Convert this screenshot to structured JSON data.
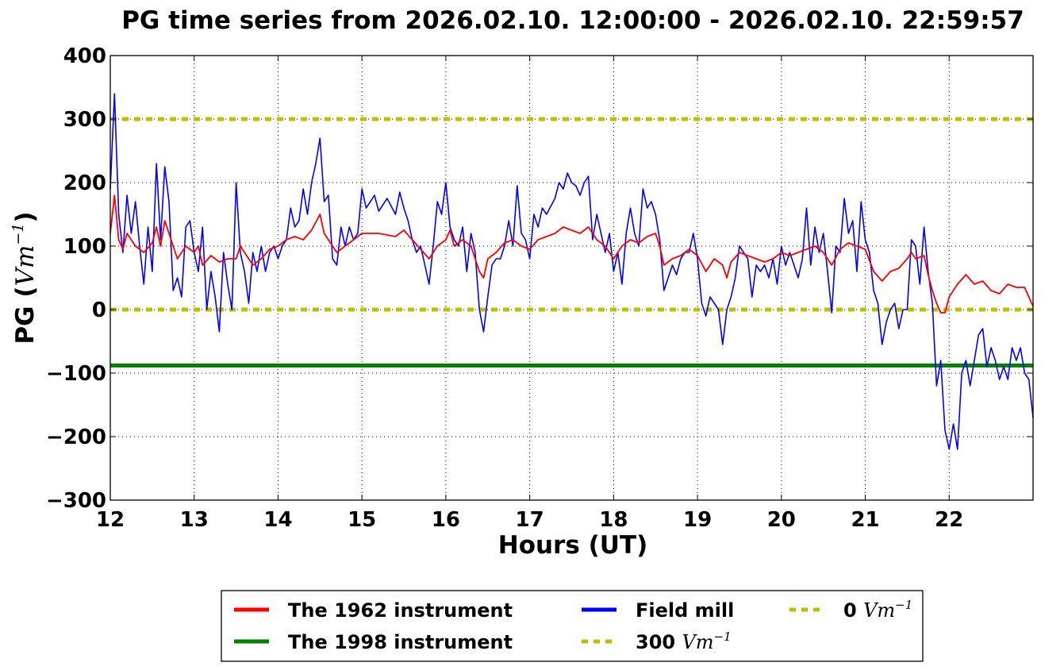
{
  "chart_data": {
    "type": "line",
    "title": "PG time series from 2026.02.10. 12:00:00 - 2026.02.10. 22:59:57",
    "xlabel": "Hours (UT)",
    "ylabel_prefix": "PG (",
    "ylabel_math": "Vm",
    "ylabel_exp": "−1",
    "ylabel_suffix": ")",
    "xlim": [
      12,
      23
    ],
    "ylim": [
      -300,
      400
    ],
    "xticks": [
      12,
      13,
      14,
      15,
      16,
      17,
      18,
      19,
      20,
      21,
      22
    ],
    "yticks": [
      400,
      300,
      200,
      100,
      0,
      -100,
      -200,
      -300
    ],
    "xtick_labels": [
      "12",
      "13",
      "14",
      "15",
      "16",
      "17",
      "18",
      "19",
      "20",
      "21",
      "22"
    ],
    "ytick_labels": [
      "400",
      "300",
      "200",
      "100",
      "0",
      "−100",
      "−200",
      "−300"
    ],
    "grid": true,
    "legend_placement": "bottom-center-outside",
    "series": [
      {
        "name": "The 1962 instrument",
        "color": "#ff0000",
        "x": [
          12.0,
          12.05,
          12.1,
          12.15,
          12.2,
          12.3,
          12.4,
          12.5,
          12.55,
          12.6,
          12.65,
          12.7,
          12.8,
          12.9,
          13.0,
          13.05,
          13.1,
          13.2,
          13.3,
          13.4,
          13.5,
          13.55,
          13.6,
          13.7,
          13.8,
          13.9,
          14.0,
          14.1,
          14.2,
          14.3,
          14.4,
          14.5,
          14.55,
          14.6,
          14.7,
          14.8,
          14.9,
          15.0,
          15.2,
          15.4,
          15.5,
          15.6,
          15.7,
          15.8,
          15.9,
          16.0,
          16.05,
          16.1,
          16.2,
          16.3,
          16.4,
          16.45,
          16.5,
          16.6,
          16.7,
          16.8,
          16.9,
          17.0,
          17.1,
          17.2,
          17.3,
          17.4,
          17.5,
          17.6,
          17.7,
          17.8,
          17.9,
          18.0,
          18.1,
          18.2,
          18.3,
          18.4,
          18.5,
          18.55,
          18.6,
          18.7,
          18.8,
          18.9,
          19.0,
          19.1,
          19.2,
          19.3,
          19.35,
          19.4,
          19.5,
          19.6,
          19.7,
          19.8,
          19.9,
          20.0,
          20.1,
          20.2,
          20.3,
          20.4,
          20.5,
          20.6,
          20.7,
          20.8,
          20.9,
          21.0,
          21.1,
          21.2,
          21.3,
          21.4,
          21.5,
          21.55,
          21.6,
          21.7,
          21.75,
          21.8,
          21.85,
          21.9,
          21.95,
          22.0,
          22.1,
          22.2,
          22.3,
          22.4,
          22.5,
          22.6,
          22.7,
          22.8,
          22.9,
          23.0
        ],
        "y": [
          120,
          180,
          110,
          95,
          120,
          100,
          90,
          105,
          130,
          100,
          140,
          120,
          80,
          100,
          90,
          100,
          70,
          85,
          75,
          80,
          80,
          100,
          90,
          70,
          80,
          95,
          100,
          110,
          115,
          110,
          125,
          150,
          120,
          110,
          90,
          100,
          110,
          120,
          120,
          115,
          125,
          110,
          95,
          80,
          100,
          110,
          125,
          100,
          110,
          100,
          60,
          50,
          80,
          90,
          105,
          110,
          100,
          95,
          110,
          115,
          120,
          130,
          125,
          120,
          130,
          110,
          100,
          80,
          100,
          110,
          105,
          115,
          120,
          100,
          70,
          80,
          85,
          95,
          85,
          60,
          80,
          70,
          50,
          75,
          90,
          85,
          80,
          75,
          80,
          90,
          85,
          90,
          95,
          100,
          90,
          70,
          95,
          105,
          100,
          95,
          60,
          45,
          60,
          65,
          80,
          90,
          80,
          85,
          55,
          30,
          10,
          -5,
          -5,
          20,
          40,
          55,
          40,
          45,
          30,
          25,
          40,
          35,
          35,
          5
        ]
      },
      {
        "name": "The 1998 instrument",
        "color": "#008000",
        "x": [
          12,
          23
        ],
        "y": [
          -88,
          -88
        ]
      },
      {
        "name": "Field mill",
        "color": "#0000ff",
        "x": [
          12.0,
          12.05,
          12.1,
          12.15,
          12.2,
          12.25,
          12.3,
          12.35,
          12.4,
          12.45,
          12.5,
          12.55,
          12.6,
          12.65,
          12.7,
          12.75,
          12.8,
          12.85,
          12.9,
          12.95,
          13.0,
          13.05,
          13.1,
          13.15,
          13.2,
          13.25,
          13.3,
          13.35,
          13.4,
          13.45,
          13.5,
          13.55,
          13.6,
          13.65,
          13.7,
          13.75,
          13.8,
          13.85,
          13.9,
          13.95,
          14.0,
          14.05,
          14.1,
          14.15,
          14.2,
          14.25,
          14.3,
          14.35,
          14.4,
          14.45,
          14.5,
          14.55,
          14.6,
          14.65,
          14.7,
          14.75,
          14.8,
          14.85,
          14.9,
          14.95,
          15.0,
          15.05,
          15.1,
          15.15,
          15.2,
          15.3,
          15.4,
          15.45,
          15.5,
          15.55,
          15.6,
          15.65,
          15.7,
          15.75,
          15.8,
          15.85,
          15.9,
          15.95,
          16.0,
          16.05,
          16.1,
          16.15,
          16.2,
          16.25,
          16.3,
          16.35,
          16.4,
          16.45,
          16.5,
          16.55,
          16.6,
          16.65,
          16.7,
          16.75,
          16.8,
          16.85,
          16.9,
          16.95,
          17.0,
          17.05,
          17.1,
          17.15,
          17.2,
          17.3,
          17.35,
          17.4,
          17.45,
          17.5,
          17.55,
          17.6,
          17.65,
          17.7,
          17.75,
          17.8,
          17.85,
          17.9,
          17.95,
          18.0,
          18.05,
          18.1,
          18.15,
          18.2,
          18.25,
          18.3,
          18.35,
          18.4,
          18.45,
          18.5,
          18.55,
          18.6,
          18.65,
          18.7,
          18.75,
          18.8,
          18.85,
          18.9,
          18.95,
          19.0,
          19.05,
          19.1,
          19.15,
          19.2,
          19.25,
          19.3,
          19.35,
          19.4,
          19.45,
          19.5,
          19.55,
          19.6,
          19.65,
          19.7,
          19.75,
          19.8,
          19.85,
          19.9,
          19.95,
          20.0,
          20.05,
          20.1,
          20.15,
          20.2,
          20.25,
          20.3,
          20.35,
          20.4,
          20.45,
          20.5,
          20.55,
          20.6,
          20.65,
          20.7,
          20.75,
          20.8,
          20.85,
          20.9,
          20.95,
          21.0,
          21.05,
          21.1,
          21.15,
          21.2,
          21.25,
          21.3,
          21.35,
          21.4,
          21.45,
          21.5,
          21.55,
          21.6,
          21.65,
          21.7,
          21.75,
          21.8,
          21.85,
          21.9,
          21.95,
          22.0,
          22.05,
          22.1,
          22.15,
          22.2,
          22.25,
          22.3,
          22.35,
          22.4,
          22.45,
          22.5,
          22.55,
          22.6,
          22.65,
          22.7,
          22.75,
          22.8,
          22.85,
          22.9,
          22.95,
          23.0
        ],
        "y": [
          190,
          340,
          150,
          90,
          180,
          120,
          170,
          100,
          40,
          130,
          60,
          230,
          110,
          225,
          170,
          30,
          50,
          20,
          130,
          140,
          90,
          60,
          130,
          0,
          60,
          20,
          -35,
          90,
          40,
          0,
          200,
          90,
          60,
          10,
          90,
          60,
          100,
          60,
          90,
          100,
          80,
          100,
          110,
          160,
          130,
          140,
          190,
          150,
          200,
          230,
          270,
          170,
          180,
          80,
          70,
          130,
          100,
          130,
          110,
          120,
          190,
          160,
          170,
          180,
          155,
          175,
          150,
          185,
          160,
          140,
          110,
          90,
          100,
          70,
          40,
          100,
          170,
          150,
          200,
          130,
          110,
          100,
          130,
          60,
          120,
          90,
          0,
          -35,
          20,
          70,
          80,
          80,
          100,
          140,
          100,
          195,
          120,
          110,
          80,
          150,
          130,
          160,
          150,
          175,
          200,
          190,
          215,
          200,
          195,
          180,
          200,
          210,
          110,
          150,
          120,
          90,
          120,
          60,
          90,
          40,
          120,
          160,
          120,
          100,
          190,
          160,
          170,
          150,
          110,
          30,
          50,
          70,
          55,
          80,
          90,
          90,
          120,
          80,
          10,
          -10,
          20,
          10,
          0,
          -55,
          0,
          20,
          50,
          100,
          90,
          80,
          20,
          70,
          60,
          70,
          50,
          80,
          40,
          100,
          70,
          90,
          70,
          50,
          80,
          160,
          70,
          130,
          90,
          120,
          60,
          -5,
          100,
          90,
          175,
          120,
          140,
          60,
          170,
          110,
          90,
          30,
          10,
          -55,
          -20,
          0,
          10,
          -30,
          0,
          0,
          110,
          100,
          40,
          130,
          60,
          10,
          -120,
          -80,
          -190,
          -220,
          -180,
          -220,
          -100,
          -80,
          -120,
          -80,
          -40,
          -30,
          -90,
          -60,
          -80,
          -110,
          -90,
          -110,
          -60,
          -80,
          -60,
          -100,
          -110,
          -170
        ]
      },
      {
        "name": "300 Vm-1",
        "color": "#bfbf00",
        "x": [
          12,
          23
        ],
        "y": [
          300,
          300
        ]
      },
      {
        "name": "0 Vm-1",
        "color": "#bfbf00",
        "x": [
          12,
          23
        ],
        "y": [
          0,
          0
        ]
      }
    ],
    "legend": [
      {
        "prefix": "The 1962 instrument",
        "math": "",
        "exp": "",
        "color": "#ff0000",
        "style": "solid"
      },
      {
        "prefix": "The 1998 instrument",
        "math": "",
        "exp": "",
        "color": "#008000",
        "style": "solid"
      },
      {
        "prefix": "Field mill",
        "math": "",
        "exp": "",
        "color": "#0000ff",
        "style": "solid"
      },
      {
        "prefix": "300 ",
        "math": "Vm",
        "exp": "−1",
        "color": "#bfbf00",
        "style": "dotted"
      },
      {
        "prefix": "0 ",
        "math": "Vm",
        "exp": "−1",
        "color": "#bfbf00",
        "style": "dotted"
      }
    ]
  }
}
